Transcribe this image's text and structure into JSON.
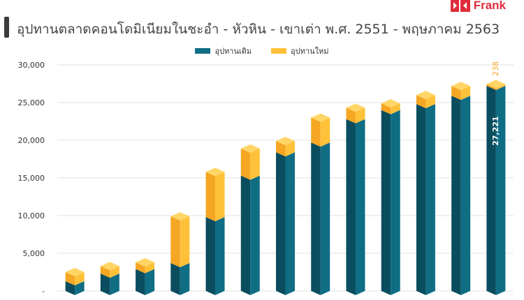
{
  "header": {
    "title": "อุปทานตลาดคอนโดมิเนียมในชะอำ - หัวหิน - เขาเต่า พ.ศ. 2551 - พฤษภาคม 2563",
    "brand": "Frank"
  },
  "colors": {
    "existing_front": "#0f6d84",
    "existing_side": "#0a4d5e",
    "new_front": "#ffc13a",
    "new_side": "#f5a623",
    "new_top": "#ffd566",
    "grid": "#e2e2e2",
    "axis_text": "#333333",
    "brand_red": "#e02b3a"
  },
  "chart_data": {
    "type": "bar",
    "stacked": true,
    "categories": [
      "",
      "",
      "",
      "",
      "",
      "",
      "",
      "",
      "",
      "",
      "",
      "",
      ""
    ],
    "series": [
      {
        "name": "อุปทานเดิม",
        "values": [
          1300,
          2300,
          2900,
          3700,
          9800,
          15300,
          18400,
          19700,
          22800,
          24000,
          24800,
          25900,
          27221
        ]
      },
      {
        "name": "อุปทานใหม่",
        "values": [
          1200,
          1000,
          900,
          6200,
          6000,
          3600,
          1500,
          3300,
          1500,
          900,
          1200,
          1300,
          238
        ]
      }
    ],
    "ylim": [
      0,
      30000
    ],
    "yticks": [
      0,
      5000,
      10000,
      15000,
      20000,
      25000,
      30000
    ],
    "ytick_labels": [
      "-",
      "5,000",
      "10,000",
      "15,000",
      "20,000",
      "25,000",
      "30,000"
    ],
    "data_labels": [
      {
        "series": 0,
        "index": 12,
        "text": "27,221"
      },
      {
        "series": 1,
        "index": 12,
        "text": "238"
      }
    ],
    "grid": true,
    "legend_position": "top-center"
  }
}
